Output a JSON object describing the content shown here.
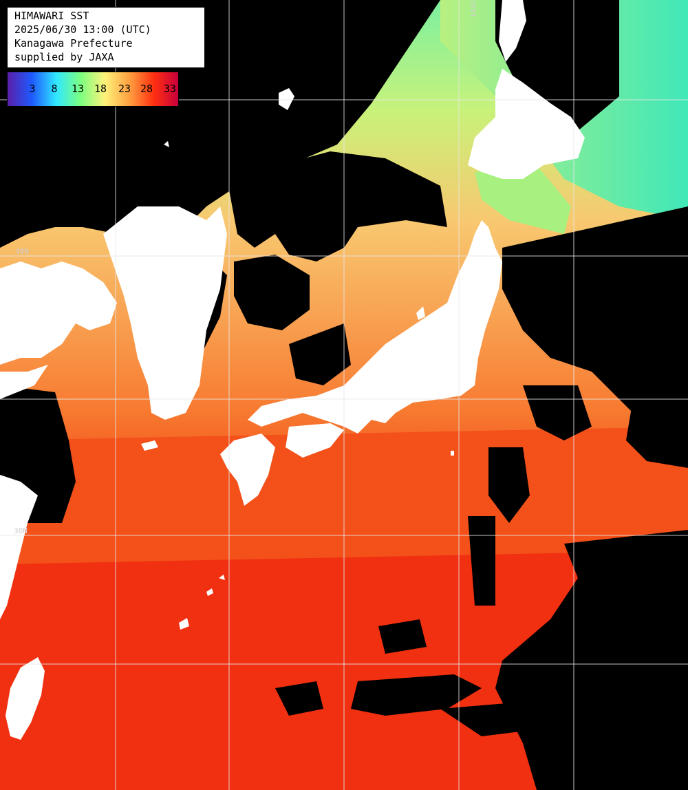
{
  "info": {
    "title": "HIMAWARI SST",
    "datetime": "2025/06/30 13:00 (UTC)",
    "provider_line": "Kanagawa Prefecture",
    "supplied_by": "supplied by JAXA"
  },
  "legend": {
    "ticks": [
      "3",
      "8",
      "13",
      "18",
      "23",
      "28",
      "33"
    ],
    "colors": [
      "#5a1ea8",
      "#1e5aff",
      "#30e8ff",
      "#7cff80",
      "#fff27a",
      "#ffa040",
      "#ff3010",
      "#c8003c"
    ]
  },
  "grid_labels": {
    "top_meridian": "140E",
    "left_lat_upper": "40N",
    "left_lat_lower": "30N"
  },
  "colors": {
    "land": "#ffffff",
    "cloud": "#000000",
    "warm_sea": "#f23d12",
    "mid_sea": "#f7a050",
    "cool_sea": "#b8f070",
    "cold_sea": "#40e8b0",
    "grid": "#e8e8e8"
  }
}
